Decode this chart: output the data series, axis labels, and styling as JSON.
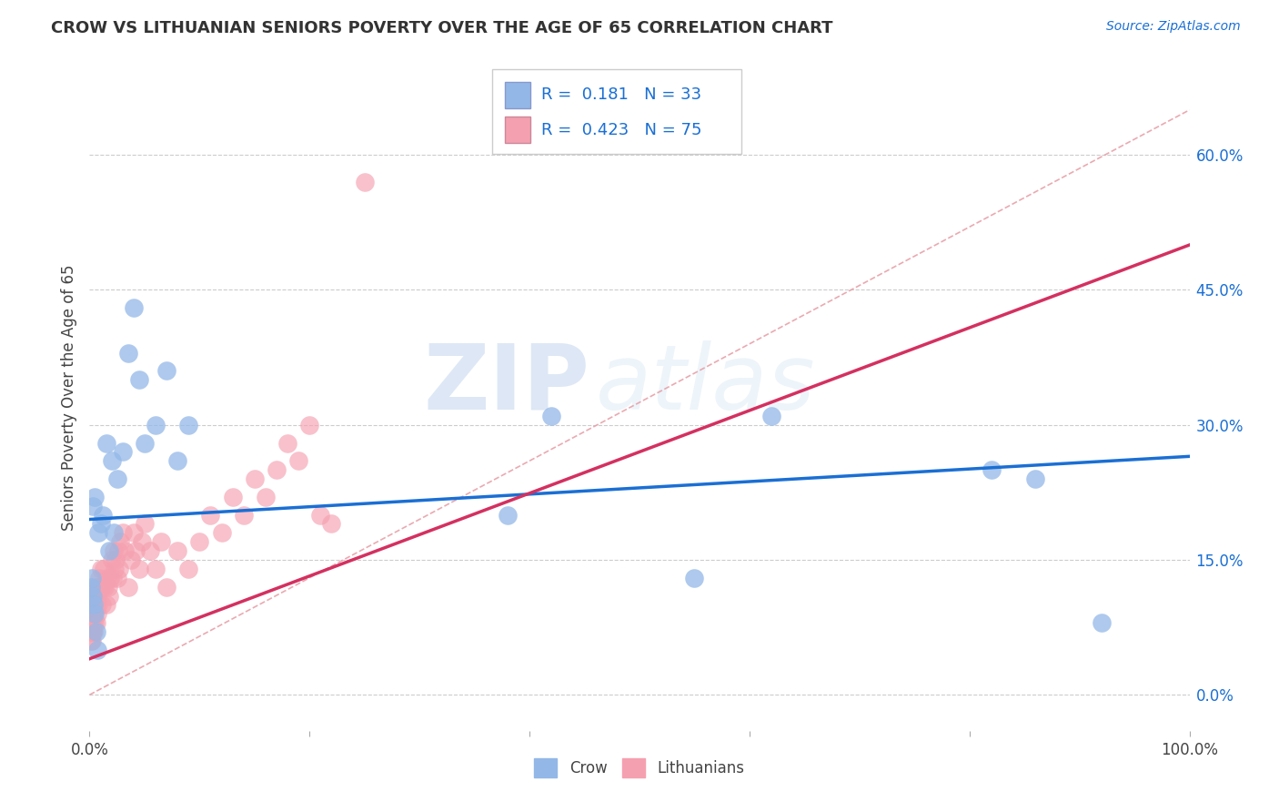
{
  "title": "CROW VS LITHUANIAN SENIORS POVERTY OVER THE AGE OF 65 CORRELATION CHART",
  "source": "Source: ZipAtlas.com",
  "ylabel": "Seniors Poverty Over the Age of 65",
  "xlim": [
    0,
    1.0
  ],
  "ylim": [
    -0.04,
    0.7
  ],
  "ytick_positions": [
    0.0,
    0.15,
    0.3,
    0.45,
    0.6
  ],
  "ytick_labels_right": [
    "0.0%",
    "15.0%",
    "30.0%",
    "45.0%",
    "60.0%"
  ],
  "xtick_positions": [
    0.0,
    0.2,
    0.4,
    0.6,
    0.8,
    1.0
  ],
  "xtick_labels": [
    "0.0%",
    "",
    "",
    "",
    "",
    "100.0%"
  ],
  "crow_color": "#93b8e8",
  "crow_line_color": "#1a6fd4",
  "lith_color": "#f5a0b0",
  "lith_line_color": "#d43060",
  "diagonal_color": "#e8a0a8",
  "legend_R_crow": "0.181",
  "legend_N_crow": "33",
  "legend_R_lith": "0.423",
  "legend_N_lith": "75",
  "crow_x": [
    0.001,
    0.002,
    0.003,
    0.003,
    0.004,
    0.005,
    0.005,
    0.006,
    0.007,
    0.008,
    0.01,
    0.012,
    0.015,
    0.018,
    0.02,
    0.022,
    0.025,
    0.03,
    0.035,
    0.04,
    0.045,
    0.05,
    0.06,
    0.07,
    0.08,
    0.09,
    0.38,
    0.42,
    0.55,
    0.62,
    0.82,
    0.86,
    0.92
  ],
  "crow_y": [
    0.12,
    0.13,
    0.21,
    0.11,
    0.1,
    0.09,
    0.22,
    0.07,
    0.05,
    0.18,
    0.19,
    0.2,
    0.28,
    0.16,
    0.26,
    0.18,
    0.24,
    0.27,
    0.38,
    0.43,
    0.35,
    0.28,
    0.3,
    0.36,
    0.26,
    0.3,
    0.2,
    0.31,
    0.13,
    0.31,
    0.25,
    0.24,
    0.08
  ],
  "lith_x": [
    0.001,
    0.001,
    0.001,
    0.001,
    0.002,
    0.002,
    0.002,
    0.002,
    0.003,
    0.003,
    0.003,
    0.003,
    0.004,
    0.004,
    0.004,
    0.005,
    0.005,
    0.005,
    0.006,
    0.006,
    0.006,
    0.007,
    0.007,
    0.008,
    0.008,
    0.009,
    0.01,
    0.01,
    0.011,
    0.012,
    0.013,
    0.014,
    0.015,
    0.016,
    0.017,
    0.018,
    0.019,
    0.02,
    0.021,
    0.022,
    0.023,
    0.024,
    0.025,
    0.026,
    0.027,
    0.028,
    0.03,
    0.032,
    0.035,
    0.038,
    0.04,
    0.042,
    0.045,
    0.048,
    0.05,
    0.055,
    0.06,
    0.065,
    0.07,
    0.08,
    0.09,
    0.1,
    0.11,
    0.12,
    0.13,
    0.14,
    0.15,
    0.16,
    0.17,
    0.18,
    0.19,
    0.2,
    0.21,
    0.22,
    0.25
  ],
  "lith_y": [
    0.09,
    0.08,
    0.07,
    0.06,
    0.1,
    0.09,
    0.07,
    0.06,
    0.11,
    0.09,
    0.08,
    0.07,
    0.1,
    0.09,
    0.07,
    0.11,
    0.1,
    0.08,
    0.12,
    0.1,
    0.08,
    0.11,
    0.09,
    0.12,
    0.1,
    0.13,
    0.14,
    0.12,
    0.1,
    0.12,
    0.14,
    0.12,
    0.1,
    0.13,
    0.12,
    0.11,
    0.13,
    0.15,
    0.13,
    0.16,
    0.14,
    0.15,
    0.13,
    0.16,
    0.14,
    0.17,
    0.18,
    0.16,
    0.12,
    0.15,
    0.18,
    0.16,
    0.14,
    0.17,
    0.19,
    0.16,
    0.14,
    0.17,
    0.12,
    0.16,
    0.14,
    0.17,
    0.2,
    0.18,
    0.22,
    0.2,
    0.24,
    0.22,
    0.25,
    0.28,
    0.26,
    0.3,
    0.2,
    0.19,
    0.57
  ],
  "crow_trend_x": [
    0.0,
    1.0
  ],
  "crow_trend_y": [
    0.195,
    0.265
  ],
  "lith_trend_x": [
    0.0,
    1.0
  ],
  "lith_trend_y": [
    0.04,
    0.5
  ],
  "watermark_zip": "ZIP",
  "watermark_atlas": "atlas",
  "background_color": "#ffffff",
  "grid_color": "#cccccc"
}
